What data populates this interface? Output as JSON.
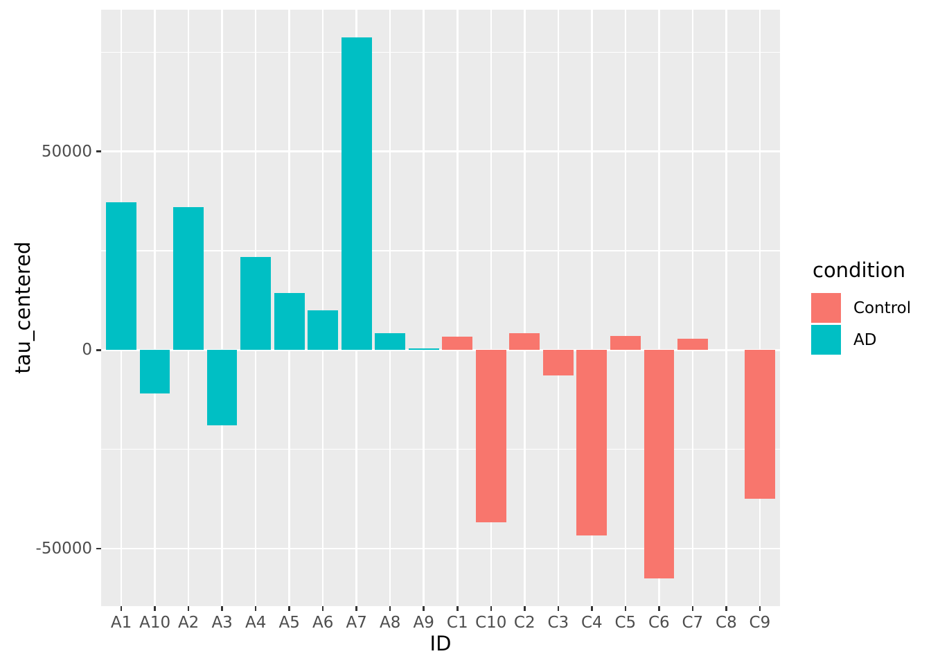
{
  "chart_data": {
    "type": "bar",
    "title": "",
    "xlabel": "ID",
    "ylabel": "tau_centered",
    "categories": [
      "A1",
      "A10",
      "A2",
      "A3",
      "A4",
      "A5",
      "A6",
      "A7",
      "A8",
      "A9",
      "C1",
      "C10",
      "C2",
      "C3",
      "C4",
      "C5",
      "C6",
      "C7",
      "C8",
      "C9"
    ],
    "values": [
      37200,
      -10900,
      36000,
      -18900,
      23400,
      14300,
      10000,
      78800,
      4300,
      400,
      3300,
      -43400,
      4300,
      -6400,
      -46700,
      3500,
      -57600,
      2900,
      0,
      -37500
    ],
    "conditions": [
      "AD",
      "AD",
      "AD",
      "AD",
      "AD",
      "AD",
      "AD",
      "AD",
      "AD",
      "AD",
      "Control",
      "Control",
      "Control",
      "Control",
      "Control",
      "Control",
      "Control",
      "Control",
      "Control",
      "Control"
    ],
    "series": [
      {
        "name": "AD",
        "color": "#00BFC4"
      },
      {
        "name": "Control",
        "color": "#F8766D"
      }
    ],
    "ylim": [
      -64500,
      85700
    ],
    "y_major_ticks": [
      {
        "label": "50000",
        "value": 50000
      },
      {
        "label": "0",
        "value": 0
      },
      {
        "label": "-50000",
        "value": -50000
      }
    ],
    "y_minor_ticks": [
      75000,
      25000,
      -25000
    ],
    "grid": true,
    "legend": {
      "title": "condition",
      "position": "right",
      "entries": [
        {
          "label": "Control",
          "color": "#F8766D"
        },
        {
          "label": "AD",
          "color": "#00BFC4"
        }
      ]
    },
    "colors": {
      "panel_bg": "#EBEBEB",
      "gridline": "#FFFFFF",
      "axis_text": "#4D4D4D",
      "tick_mark": "#333333",
      "title_text": "#000000"
    }
  }
}
